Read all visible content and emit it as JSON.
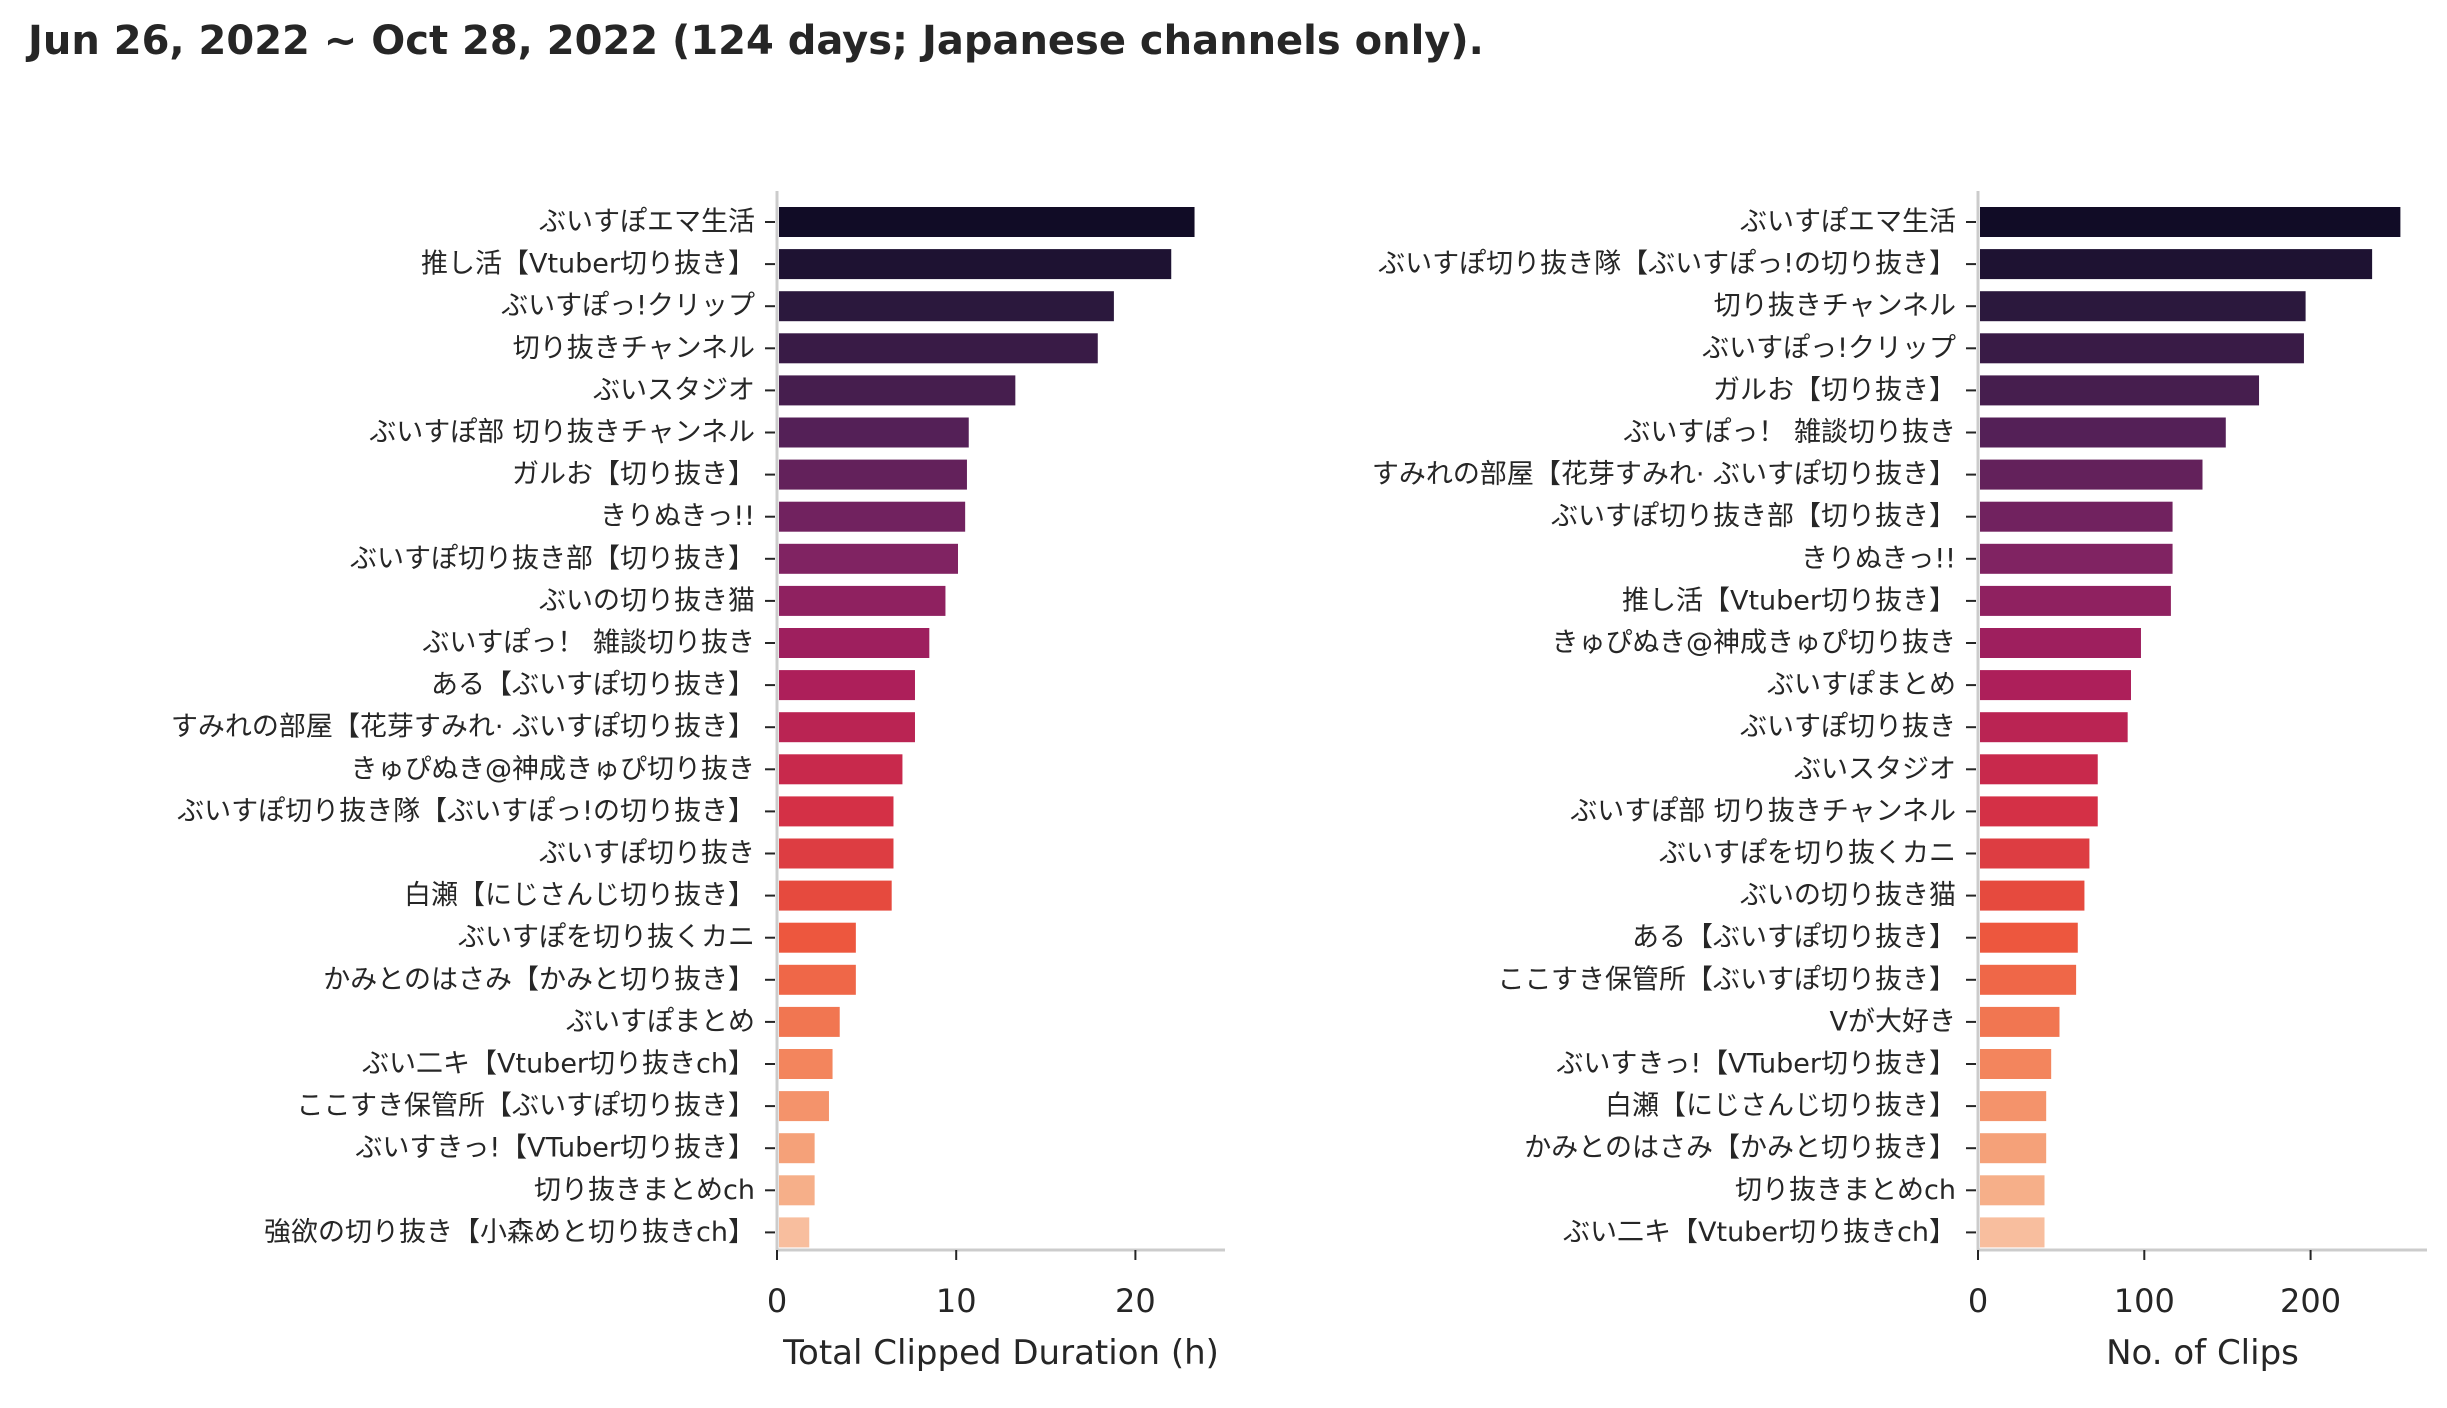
{
  "title": "Jun 26, 2022 ~ Oct 28, 2022 (124 days; Japanese channels only).",
  "chart_data": [
    {
      "type": "bar",
      "orientation": "horizontal",
      "xlabel": "Total Clipped Duration (h)",
      "ylabel": "",
      "xlim": [
        0,
        25
      ],
      "xticks": [
        0,
        10,
        20
      ],
      "grid": false,
      "color_palette": "rocket",
      "categories": [
        "ぶいすぽエマ生活",
        "推し活【Vtuber切り抜き】",
        "ぶいすぽっ!クリップ",
        "切り抜きチャンネル",
        "ぶいスタジオ",
        "ぶいすぽ部 切り抜きチャンネル",
        "ガルお【切り抜き】",
        "きりぬきっ!!",
        "ぶいすぽ切り抜き部【切り抜き】",
        "ぶいの切り抜き猫",
        "ぶいすぽっ！ 雑談切り抜き",
        "ある【ぶいすぽ切り抜き】",
        "すみれの部屋【花芽すみれ· ぶいすぽ切り抜き】",
        "きゅぴぬき@神成きゅぴ切り抜き",
        "ぶいすぽ切り抜き隊【ぶいすぽっ!の切り抜き】",
        "ぶいすぽ切り抜き",
        "白瀬【にじさんじ切り抜き】",
        "ぶいすぽを切り抜くカニ",
        "かみとのはさみ【かみと切り抜き】",
        "ぶいすぽまとめ",
        "ぶい二キ【Vtuber切り抜きch】",
        "ここすき保管所【ぶいすぽ切り抜き】",
        "ぶいすきっ!【VTuber切り抜き】",
        "切り抜きまとめch",
        "強欲の切り抜き【小森めと切り抜きch】"
      ],
      "values": [
        23.3,
        22.0,
        18.8,
        17.9,
        13.3,
        10.7,
        10.6,
        10.5,
        10.1,
        9.4,
        8.5,
        7.7,
        7.7,
        7.0,
        6.5,
        6.5,
        6.4,
        4.4,
        4.4,
        3.5,
        3.1,
        2.9,
        2.1,
        2.1,
        1.8
      ]
    },
    {
      "type": "bar",
      "orientation": "horizontal",
      "xlabel": "No. of Clips",
      "ylabel": "",
      "xlim": [
        0,
        270
      ],
      "xticks": [
        0,
        100,
        200
      ],
      "grid": false,
      "color_palette": "rocket",
      "categories": [
        "ぶいすぽエマ生活",
        "ぶいすぽ切り抜き隊【ぶいすぽっ!の切り抜き】",
        "切り抜きチャンネル",
        "ぶいすぽっ!クリップ",
        "ガルお【切り抜き】",
        "ぶいすぽっ！ 雑談切り抜き",
        "すみれの部屋【花芽すみれ· ぶいすぽ切り抜き】",
        "ぶいすぽ切り抜き部【切り抜き】",
        "きりぬきっ!!",
        "推し活【Vtuber切り抜き】",
        "きゅぴぬき@神成きゅぴ切り抜き",
        "ぶいすぽまとめ",
        "ぶいすぽ切り抜き",
        "ぶいスタジオ",
        "ぶいすぽ部 切り抜きチャンネル",
        "ぶいすぽを切り抜くカニ",
        "ぶいの切り抜き猫",
        "ある【ぶいすぽ切り抜き】",
        "ここすき保管所【ぶいすぽ切り抜き】",
        "Vが大好き",
        "ぶいすきっ!【VTuber切り抜き】",
        "白瀬【にじさんじ切り抜き】",
        "かみとのはさみ【かみと切り抜き】",
        "切り抜きまとめch",
        "ぶい二キ【Vtuber切り抜きch】"
      ],
      "values": [
        254,
        237,
        197,
        196,
        169,
        149,
        135,
        117,
        117,
        116,
        98,
        92,
        90,
        72,
        72,
        67,
        64,
        60,
        59,
        49,
        44,
        41,
        41,
        40,
        40
      ]
    }
  ]
}
